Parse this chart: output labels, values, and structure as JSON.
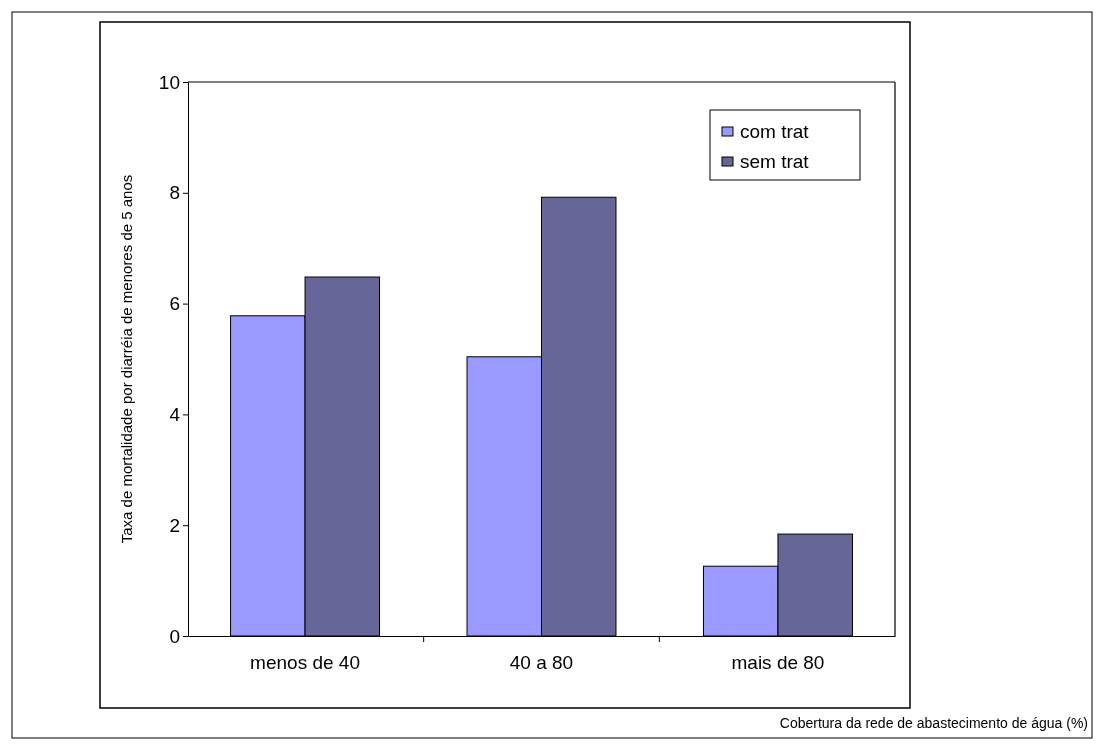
{
  "chart_data": {
    "type": "bar",
    "xlabel": "Cobertura da rede de abastecimento de água (%)",
    "ylabel": "Taxa de mortalidade por diarréia de menores de 5 anos",
    "categories": [
      "menos de 40",
      "40 a 80",
      "mais de 80"
    ],
    "series": [
      {
        "name": "com trat",
        "color": "#9999ff",
        "values": [
          5.78,
          5.04,
          1.26
        ]
      },
      {
        "name": "sem trat",
        "color": "#666699",
        "values": [
          6.48,
          7.92,
          1.84
        ]
      }
    ],
    "ylim": [
      0,
      10
    ],
    "yticks": [
      0,
      2,
      4,
      6,
      8,
      10
    ],
    "grid": false,
    "legend": "top right"
  }
}
